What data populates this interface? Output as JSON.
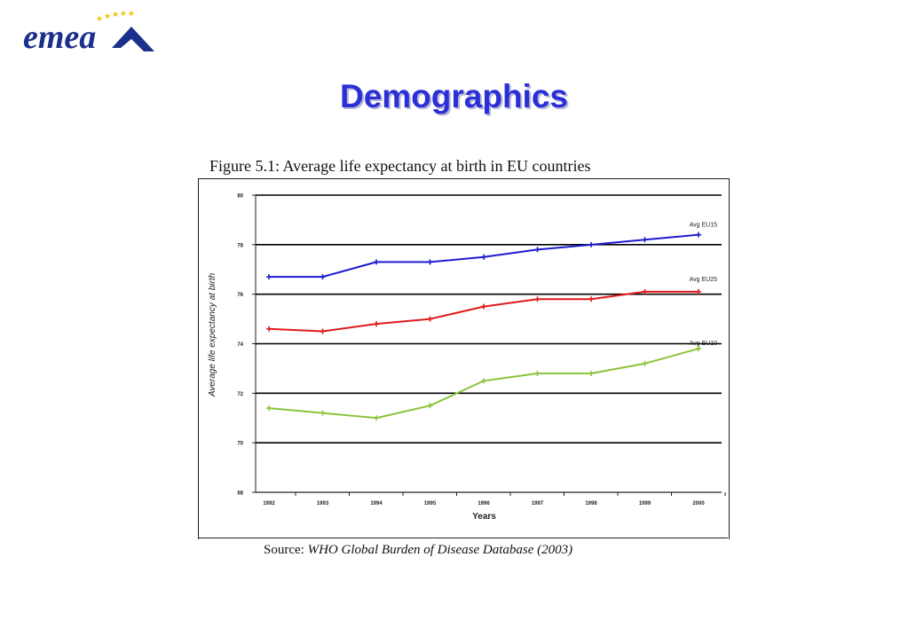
{
  "slide": {
    "title": "Demographics",
    "logo_text": "emea"
  },
  "figure": {
    "caption": "Figure 5.1: Average life expectancy at birth in EU countries",
    "source_label": "Source:",
    "source_text": "WHO Global Burden of Disease Database (2003)"
  },
  "chart_data": {
    "type": "line",
    "title": "Figure 5.1: Average life expectancy at birth in EU countries",
    "xlabel": "Years",
    "ylabel": "Average life expectancy at birth",
    "x": [
      "1992",
      "1993",
      "1994",
      "1995",
      "1996",
      "1997",
      "1998",
      "1999",
      "2000"
    ],
    "ylim": [
      68,
      80
    ],
    "yticks": [
      "68",
      "70",
      "72",
      "74",
      "76",
      "78",
      "80"
    ],
    "grid": true,
    "series": [
      {
        "name": "Avg EU15",
        "color": "#1c1ccf",
        "values": [
          76.7,
          76.7,
          77.3,
          77.3,
          77.5,
          77.8,
          78.0,
          78.2,
          78.4
        ]
      },
      {
        "name": "Avg EU25",
        "color": "#e01a1a",
        "values": [
          74.6,
          74.5,
          74.8,
          75.0,
          75.5,
          75.8,
          75.8,
          76.1,
          76.1
        ]
      },
      {
        "name": "Avg EU10",
        "color": "#8cc43a",
        "values": [
          71.4,
          71.2,
          71.0,
          71.5,
          72.5,
          72.8,
          72.8,
          73.2,
          73.8
        ]
      }
    ]
  }
}
